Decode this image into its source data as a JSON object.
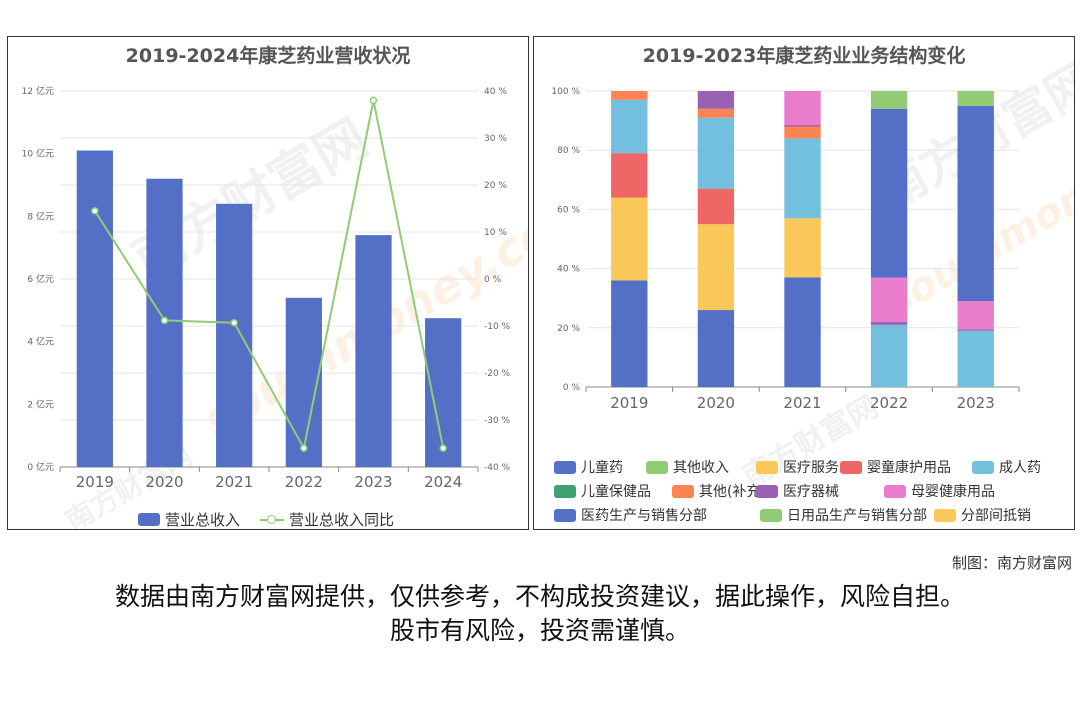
{
  "credit": "制图：南方财富网",
  "disclaimer": {
    "line1": "数据由南方财富网提供，仅供参考，不构成投资建议，据此操作，风险自担。",
    "line2": "股市有风险，投资需谨慎。"
  },
  "watermark": {
    "text": "南方财富网",
    "url": "southmoney.com"
  },
  "colors": {
    "bar": "#5470c6",
    "line": "#91cc75",
    "grid": "#e6e6e6",
    "axis": "#666666"
  },
  "chart_data": [
    {
      "type": "bar",
      "title": "2019-2024年康芝药业营收状况",
      "categories": [
        "2019",
        "2020",
        "2021",
        "2022",
        "2023",
        "2024"
      ],
      "series": [
        {
          "name": "营业总收入",
          "type": "bar",
          "axis": "left",
          "values": [
            10.1,
            9.2,
            8.4,
            5.4,
            7.4,
            4.75
          ]
        },
        {
          "name": "营业总收入同比",
          "type": "line",
          "axis": "right",
          "values": [
            14.5,
            -8.8,
            -9.3,
            -36.0,
            38.0,
            -36.0
          ]
        }
      ],
      "y_left": {
        "min": 0,
        "max": 12,
        "ticks": [
          "0 亿元",
          "2 亿元",
          "4 亿元",
          "6 亿元",
          "8 亿元",
          "10 亿元",
          "12 亿元"
        ]
      },
      "y_right": {
        "min": -40,
        "max": 40,
        "ticks": [
          "-40 %",
          "-30 %",
          "-20 %",
          "-10 %",
          "0 %",
          "10 %",
          "20 %",
          "30 %",
          "40 %"
        ]
      },
      "grid": true,
      "legend_position": "bottom"
    },
    {
      "type": "bar",
      "stacked": true,
      "title": "2019-2023年康芝药业业务结构变化",
      "categories": [
        "2019",
        "2020",
        "2021",
        "2022",
        "2023"
      ],
      "y": {
        "min": 0,
        "max": 100,
        "ticks": [
          "0 %",
          "20 %",
          "40 %",
          "60 %",
          "80 %",
          "100 %"
        ]
      },
      "series": [
        {
          "name": "儿童药",
          "color": "#5470c6",
          "values": [
            36,
            26,
            37,
            0,
            0
          ]
        },
        {
          "name": "其他收入",
          "color": "#91cc75",
          "values": [
            0,
            0,
            0,
            0,
            0
          ]
        },
        {
          "name": "医疗服务",
          "color": "#fac858",
          "values": [
            28,
            29,
            20,
            0,
            0
          ]
        },
        {
          "name": "婴童康护用品",
          "color": "#ee6666",
          "values": [
            15,
            12,
            0,
            0,
            0
          ]
        },
        {
          "name": "成人药",
          "color": "#73c0de",
          "values": [
            18,
            24,
            27,
            21,
            19
          ]
        },
        {
          "name": "儿童保健品",
          "color": "#3ba272",
          "values": [
            0,
            0,
            0,
            0,
            0
          ]
        },
        {
          "name": "其他(补充)",
          "color": "#fc8452",
          "values": [
            3,
            3,
            4,
            0,
            0
          ]
        },
        {
          "name": "医疗器械",
          "color": "#9a60b4",
          "values": [
            0,
            6,
            0.5,
            1,
            0.5
          ]
        },
        {
          "name": "母婴健康用品",
          "color": "#ea7ccc",
          "values": [
            0,
            0,
            11.5,
            15,
            9.5
          ]
        },
        {
          "name": "医药生产与销售分部",
          "color": "#5470c6",
          "values": [
            0,
            0,
            0,
            57,
            66
          ]
        },
        {
          "name": "日用品生产与销售分部",
          "color": "#91cc75",
          "values": [
            0,
            0,
            0,
            6,
            5
          ]
        },
        {
          "name": "分部间抵销",
          "color": "#fac858",
          "values": [
            0,
            0,
            0,
            0,
            0
          ]
        }
      ],
      "grid": true,
      "legend_position": "bottom"
    }
  ]
}
